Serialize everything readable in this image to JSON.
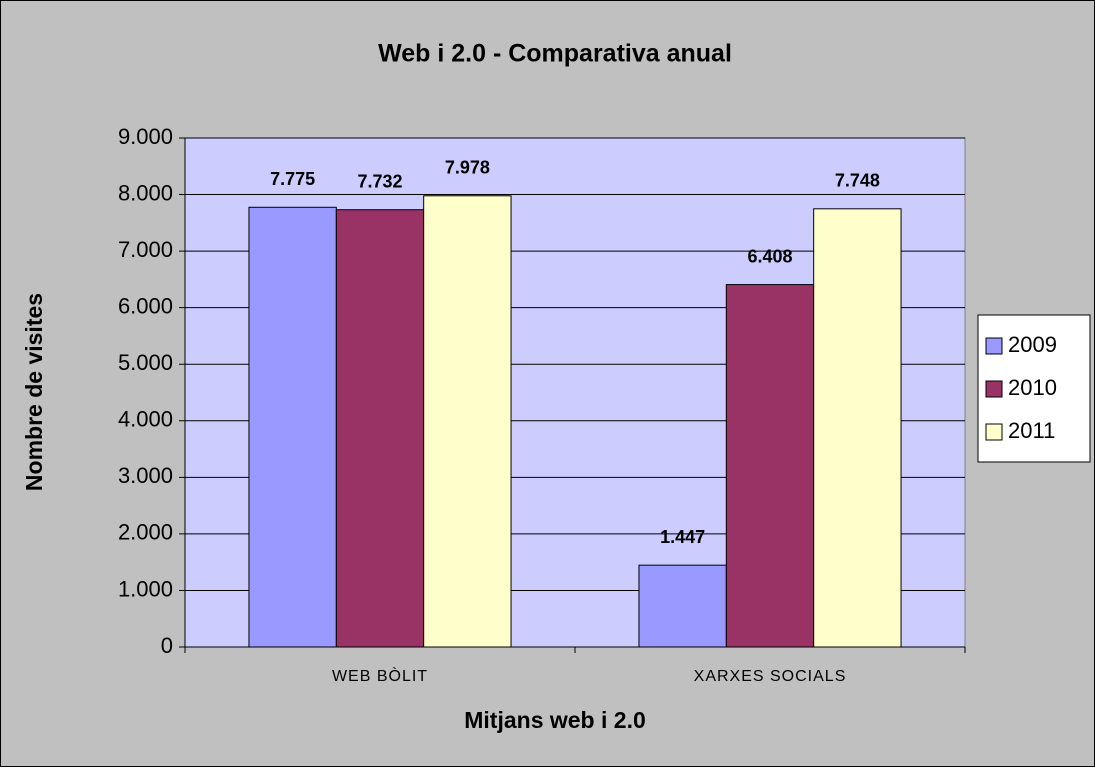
{
  "chart_data": {
    "type": "bar",
    "title": "Web i 2.0 - Comparativa anual",
    "x_label": "Mitjans web i 2.0",
    "y_label": "Nombre de visites",
    "categories": [
      "WEB BÒLIT",
      "XARXES SOCIALS"
    ],
    "series": [
      {
        "name": "2009",
        "color": "#9999ff",
        "values": [
          7775,
          1447
        ],
        "value_labels": [
          "7.775",
          "1.447"
        ]
      },
      {
        "name": "2010",
        "color": "#993366",
        "values": [
          7732,
          6408
        ],
        "value_labels": [
          "7.732",
          "6.408"
        ]
      },
      {
        "name": "2011",
        "color": "#ffffcc",
        "values": [
          7978,
          7748
        ],
        "value_labels": [
          "7.978",
          "7.748"
        ]
      }
    ],
    "ylim": [
      0,
      9000
    ],
    "yticks": [
      0,
      {
        "value": 1000,
        "label": "1.000"
      },
      {
        "value": 2000,
        "label": "2.000"
      },
      {
        "value": 3000,
        "label": "3.000"
      },
      {
        "value": 4000,
        "label": "4.000"
      },
      {
        "value": 5000,
        "label": "5.000"
      },
      {
        "value": 6000,
        "label": "6.000"
      },
      {
        "value": 7000,
        "label": "7.000"
      },
      {
        "value": 8000,
        "label": "8.000"
      },
      {
        "value": 9000,
        "label": "9.000"
      }
    ],
    "grid": true,
    "legend": "right"
  }
}
